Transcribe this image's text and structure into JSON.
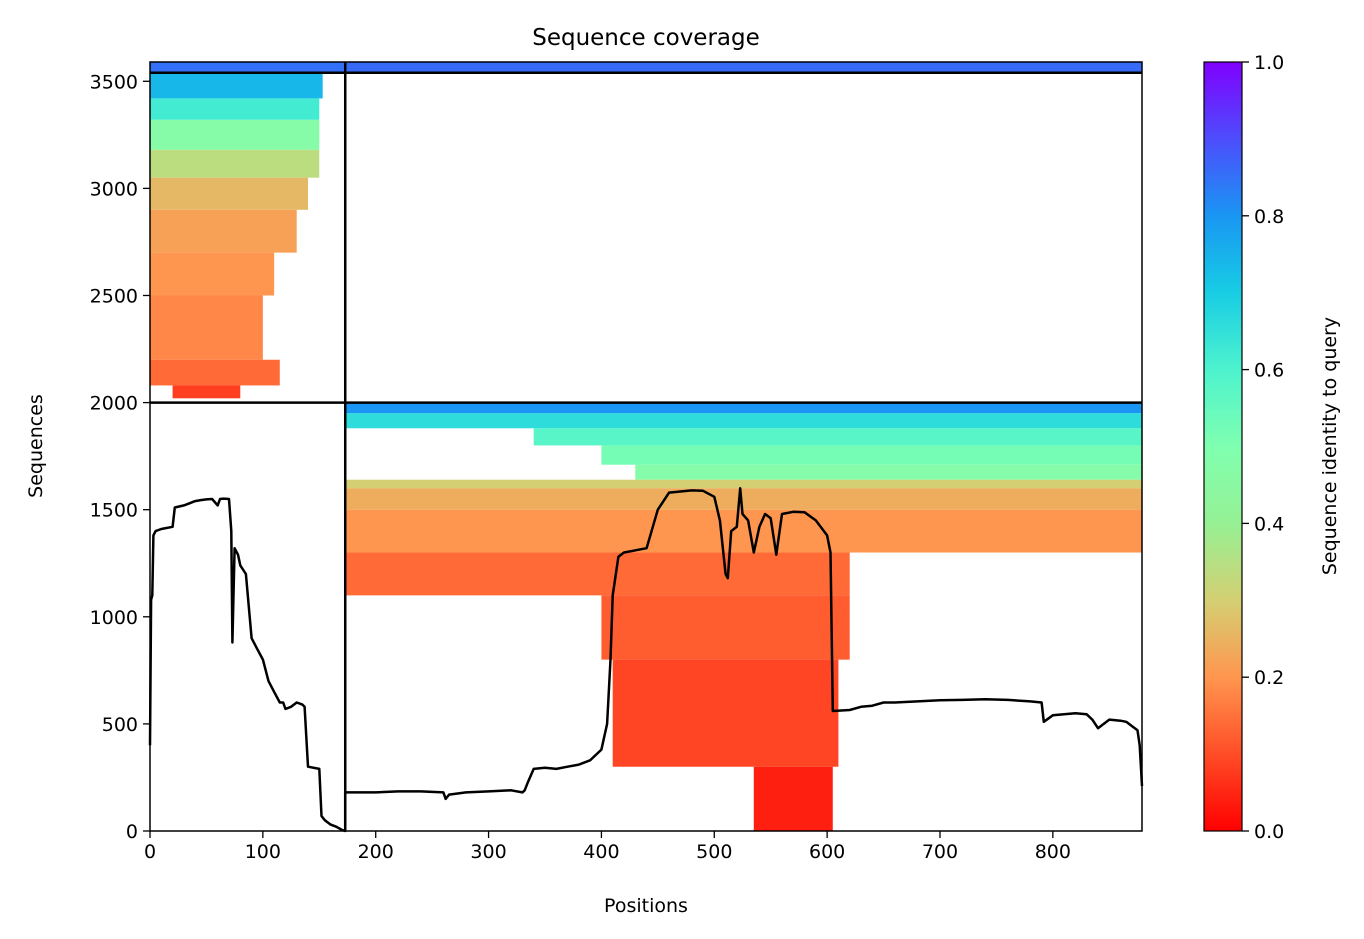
{
  "chart_data": {
    "type": "heatmap",
    "title": "Sequence coverage",
    "xlabel": "Positions",
    "ylabel": "Sequences",
    "xlim": [
      0,
      879
    ],
    "ylim": [
      0,
      3590
    ],
    "xticks": [
      0,
      100,
      200,
      300,
      400,
      500,
      600,
      700,
      800
    ],
    "yticks": [
      0,
      500,
      1000,
      1500,
      2000,
      2500,
      3000,
      3500
    ],
    "grid": false,
    "colorbar": {
      "label": "Sequence identity to query",
      "colormap": "rainbow",
      "range": [
        0.0,
        1.0
      ],
      "ticks": [
        0.0,
        0.2,
        0.4,
        0.6,
        0.8,
        1.0
      ],
      "tick_labels": [
        "0.0",
        "0.2",
        "0.4",
        "0.6",
        "0.8",
        "1.0"
      ]
    },
    "boundaries": {
      "x": [
        173
      ],
      "y": [
        2000,
        3540
      ]
    },
    "coverage_blocks": [
      {
        "x0": 0,
        "x1": 173,
        "y0": 3540,
        "y1": 3590,
        "identity": 0.85
      },
      {
        "x0": 173,
        "x1": 879,
        "y0": 3540,
        "y1": 3590,
        "identity": 0.86
      },
      {
        "x0": 0,
        "x1": 153,
        "y0": 3420,
        "y1": 3540,
        "identity": 0.74
      },
      {
        "x0": 0,
        "x1": 150,
        "y0": 3320,
        "y1": 3420,
        "identity": 0.62
      },
      {
        "x0": 0,
        "x1": 150,
        "y0": 3180,
        "y1": 3320,
        "identity": 0.47
      },
      {
        "x0": 0,
        "x1": 150,
        "y0": 3050,
        "y1": 3180,
        "identity": 0.34
      },
      {
        "x0": 0,
        "x1": 140,
        "y0": 2900,
        "y1": 3050,
        "identity": 0.26
      },
      {
        "x0": 0,
        "x1": 130,
        "y0": 2700,
        "y1": 2900,
        "identity": 0.22
      },
      {
        "x0": 0,
        "x1": 110,
        "y0": 2500,
        "y1": 2700,
        "identity": 0.2
      },
      {
        "x0": 0,
        "x1": 100,
        "y0": 2200,
        "y1": 2500,
        "identity": 0.18
      },
      {
        "x0": 0,
        "x1": 115,
        "y0": 2080,
        "y1": 2200,
        "identity": 0.14
      },
      {
        "x0": 20,
        "x1": 80,
        "y0": 2020,
        "y1": 2080,
        "identity": 0.08
      },
      {
        "x0": 173,
        "x1": 879,
        "y0": 1950,
        "y1": 2000,
        "identity": 0.8
      },
      {
        "x0": 173,
        "x1": 879,
        "y0": 1880,
        "y1": 1950,
        "identity": 0.66
      },
      {
        "x0": 340,
        "x1": 879,
        "y0": 1800,
        "y1": 1880,
        "identity": 0.58
      },
      {
        "x0": 400,
        "x1": 879,
        "y0": 1710,
        "y1": 1800,
        "identity": 0.52
      },
      {
        "x0": 430,
        "x1": 879,
        "y0": 1640,
        "y1": 1710,
        "identity": 0.48
      },
      {
        "x0": 173,
        "x1": 879,
        "y0": 1600,
        "y1": 1640,
        "identity": 0.3
      },
      {
        "x0": 173,
        "x1": 879,
        "y0": 1500,
        "y1": 1600,
        "identity": 0.24
      },
      {
        "x0": 173,
        "x1": 879,
        "y0": 1300,
        "y1": 1500,
        "identity": 0.2
      },
      {
        "x0": 173,
        "x1": 620,
        "y0": 1100,
        "y1": 1300,
        "identity": 0.14
      },
      {
        "x0": 400,
        "x1": 620,
        "y0": 800,
        "y1": 1100,
        "identity": 0.12
      },
      {
        "x0": 410,
        "x1": 610,
        "y0": 300,
        "y1": 800,
        "identity": 0.09
      },
      {
        "x0": 535,
        "x1": 605,
        "y0": 0,
        "y1": 300,
        "identity": 0.04
      }
    ],
    "series": [
      {
        "x": [
          0,
          1,
          2,
          3,
          5,
          10,
          20,
          22,
          30,
          35,
          40,
          45,
          50,
          55,
          60,
          62,
          65,
          70,
          72,
          73,
          75,
          78,
          80,
          85,
          90,
          95,
          100,
          105,
          110,
          115,
          118,
          120,
          125,
          130,
          135,
          137,
          140,
          150,
          152,
          155,
          160,
          165,
          170,
          173,
          173,
          180,
          200,
          220,
          240,
          260,
          262,
          265,
          280,
          300,
          320,
          330,
          332,
          335,
          340,
          350,
          360,
          370,
          380,
          390,
          400,
          405,
          408,
          410,
          415,
          420,
          440,
          450,
          460,
          470,
          480,
          490,
          500,
          505,
          510,
          512,
          515,
          520,
          523,
          525,
          530,
          535,
          540,
          545,
          550,
          555,
          560,
          570,
          580,
          590,
          600,
          603,
          605,
          620,
          630,
          640,
          650,
          660,
          680,
          700,
          720,
          740,
          760,
          780,
          790,
          792,
          800,
          820,
          830,
          835,
          840,
          850,
          860,
          865,
          870,
          875,
          877,
          879
        ],
        "y": [
          400,
          1080,
          1100,
          1380,
          1400,
          1410,
          1420,
          1510,
          1520,
          1530,
          1540,
          1545,
          1548,
          1550,
          1520,
          1550,
          1552,
          1550,
          1400,
          880,
          1320,
          1290,
          1240,
          1200,
          900,
          850,
          800,
          700,
          650,
          600,
          600,
          570,
          580,
          600,
          590,
          580,
          300,
          290,
          70,
          50,
          30,
          20,
          5,
          0,
          180,
          180,
          180,
          185,
          185,
          180,
          150,
          170,
          180,
          185,
          190,
          180,
          190,
          230,
          290,
          295,
          290,
          300,
          310,
          330,
          380,
          500,
          800,
          1100,
          1280,
          1300,
          1320,
          1500,
          1580,
          1585,
          1590,
          1588,
          1560,
          1450,
          1200,
          1180,
          1400,
          1420,
          1600,
          1480,
          1450,
          1300,
          1420,
          1480,
          1460,
          1290,
          1480,
          1490,
          1488,
          1450,
          1380,
          1300,
          560,
          565,
          580,
          585,
          600,
          600,
          605,
          610,
          612,
          615,
          612,
          605,
          600,
          510,
          540,
          550,
          545,
          520,
          480,
          520,
          515,
          510,
          490,
          470,
          400,
          210
        ]
      }
    ]
  }
}
